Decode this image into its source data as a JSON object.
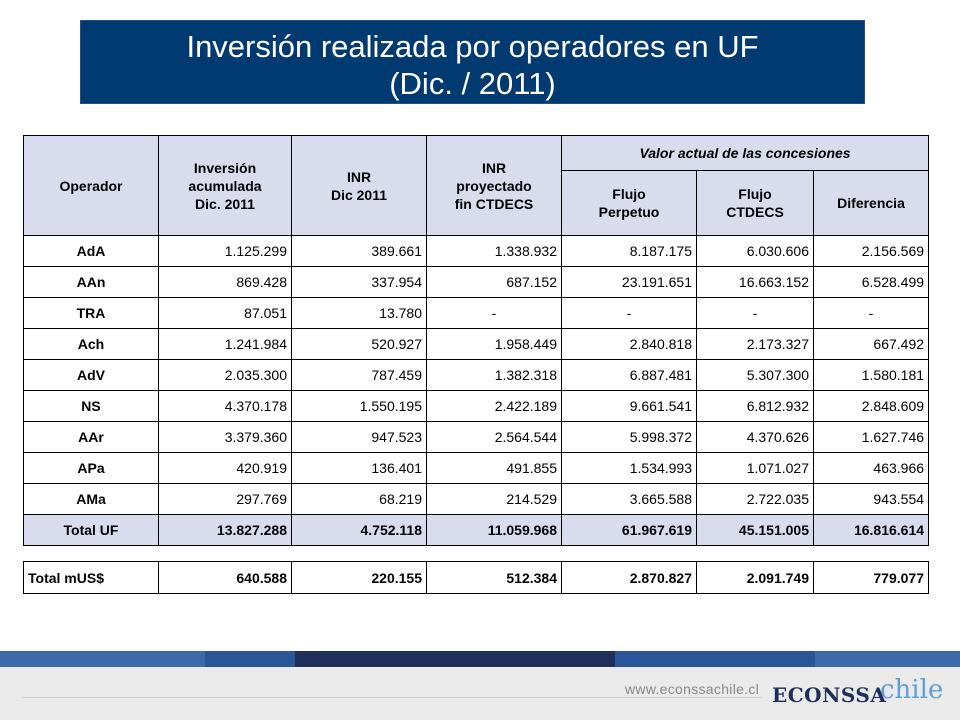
{
  "title": {
    "line1": "Inversión realizada por operadores en UF",
    "line2": "(Dic. / 2011)"
  },
  "table": {
    "headers": {
      "operador": "Operador",
      "inversion": [
        "Inversión",
        "acumulada",
        "Dic. 2011"
      ],
      "inr": [
        "INR",
        "Dic 2011"
      ],
      "inr_proyectado": [
        "INR",
        "proyectado",
        "fin CTDECS"
      ],
      "valor_actual": "Valor actual de las concesiones",
      "flujo_perpetuo": [
        "Flujo",
        "Perpetuo"
      ],
      "flujo_ctdecs": [
        "Flujo",
        "CTDECS"
      ],
      "diferencia": "Diferencia"
    },
    "rows": [
      {
        "operador": "AdA",
        "inversion": "1.125.299",
        "inr": "389.661",
        "inr_proy": "1.338.932",
        "flujo_perpetuo": "8.187.175",
        "flujo_ctdecs": "6.030.606",
        "diferencia": "2.156.569"
      },
      {
        "operador": "AAn",
        "inversion": "869.428",
        "inr": "337.954",
        "inr_proy": "687.152",
        "flujo_perpetuo": "23.191.651",
        "flujo_ctdecs": "16.663.152",
        "diferencia": "6.528.499"
      },
      {
        "operador": "TRA",
        "inversion": "87.051",
        "inr": "13.780",
        "inr_proy": "-",
        "flujo_perpetuo": "-",
        "flujo_ctdecs": "-",
        "diferencia": "-"
      },
      {
        "operador": "Ach",
        "inversion": "1.241.984",
        "inr": "520.927",
        "inr_proy": "1.958.449",
        "flujo_perpetuo": "2.840.818",
        "flujo_ctdecs": "2.173.327",
        "diferencia": "667.492"
      },
      {
        "operador": "AdV",
        "inversion": "2.035.300",
        "inr": "787.459",
        "inr_proy": "1.382.318",
        "flujo_perpetuo": "6.887.481",
        "flujo_ctdecs": "5.307.300",
        "diferencia": "1.580.181"
      },
      {
        "operador": "NS",
        "inversion": "4.370.178",
        "inr": "1.550.195",
        "inr_proy": "2.422.189",
        "flujo_perpetuo": "9.661.541",
        "flujo_ctdecs": "6.812.932",
        "diferencia": "2.848.609"
      },
      {
        "operador": "AAr",
        "inversion": "3.379.360",
        "inr": "947.523",
        "inr_proy": "2.564.544",
        "flujo_perpetuo": "5.998.372",
        "flujo_ctdecs": "4.370.626",
        "diferencia": "1.627.746"
      },
      {
        "operador": "APa",
        "inversion": "420.919",
        "inr": "136.401",
        "inr_proy": "491.855",
        "flujo_perpetuo": "1.534.993",
        "flujo_ctdecs": "1.071.027",
        "diferencia": "463.966"
      },
      {
        "operador": "AMa",
        "inversion": "297.769",
        "inr": "68.219",
        "inr_proy": "214.529",
        "flujo_perpetuo": "3.665.588",
        "flujo_ctdecs": "2.722.035",
        "diferencia": "943.554"
      }
    ],
    "total": {
      "operador": "Total UF",
      "inversion": "13.827.288",
      "inr": "4.752.118",
      "inr_proy": "11.059.968",
      "flujo_perpetuo": "61.967.619",
      "flujo_ctdecs": "45.151.005",
      "diferencia": "16.816.614"
    }
  },
  "usd_row": {
    "label": "Total  mUS$",
    "values": [
      "640.588",
      "220.155",
      "512.384",
      "2.870.827",
      "2.091.749",
      "779.077"
    ]
  },
  "footer": {
    "url": "www.econssachile.cl",
    "logo_main": "ECONSSA",
    "logo_suffix": "chile"
  },
  "colors": {
    "title_bg": "#003a70",
    "header_bg": "#d9dcec",
    "logo_dark": "#1e2f5a",
    "logo_light": "#5fa0d4"
  }
}
